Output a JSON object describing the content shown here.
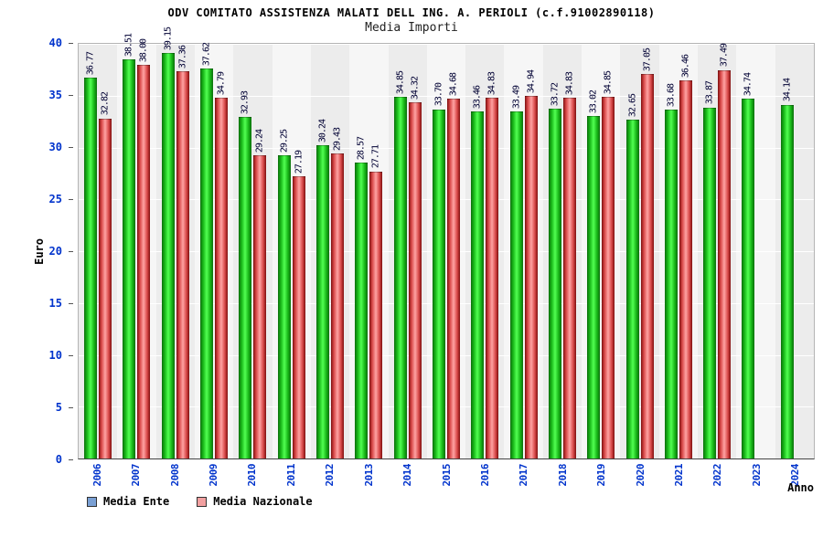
{
  "title": "ODV COMITATO ASSISTENZA MALATI DELL ING. A. PERIOLI (c.f.91002890118)",
  "subtitle": "Media Importi",
  "ylabel": "Euro",
  "xlabel": "Anno",
  "legend": [
    {
      "label": "Media Ente",
      "color": "#7aa0d4"
    },
    {
      "label": "Media Nazionale",
      "color": "#f2a0a0"
    }
  ],
  "chart_data": {
    "type": "bar",
    "title": "ODV COMITATO ASSISTENZA MALATI DELL ING. A. PERIOLI (c.f.91002890118)",
    "subtitle": "Media Importi",
    "xlabel": "Anno",
    "ylabel": "Euro",
    "ylim": [
      0,
      40
    ],
    "yticks": [
      0,
      5,
      10,
      15,
      20,
      25,
      30,
      35,
      40
    ],
    "grid": "horizontal-white-on-gray",
    "legend_position": "bottom-left",
    "categories": [
      "2006",
      "2007",
      "2008",
      "2009",
      "2010",
      "2011",
      "2012",
      "2013",
      "2014",
      "2015",
      "2016",
      "2017",
      "2018",
      "2019",
      "2020",
      "2021",
      "2022",
      "2023",
      "2024"
    ],
    "series": [
      {
        "name": "Media Ente",
        "color": "#00cc00",
        "values": [
          36.77,
          38.51,
          39.15,
          37.62,
          32.93,
          29.25,
          30.24,
          28.57,
          34.85,
          33.7,
          33.46,
          33.49,
          33.72,
          33.02,
          32.65,
          33.68,
          33.87,
          34.74,
          34.14
        ]
      },
      {
        "name": "Media Nazionale",
        "color": "#cc0000",
        "values": [
          32.82,
          38.0,
          37.36,
          34.79,
          29.24,
          27.19,
          29.43,
          27.71,
          34.32,
          34.68,
          34.83,
          34.94,
          34.83,
          34.85,
          37.05,
          36.46,
          37.49,
          null,
          null
        ]
      }
    ]
  }
}
